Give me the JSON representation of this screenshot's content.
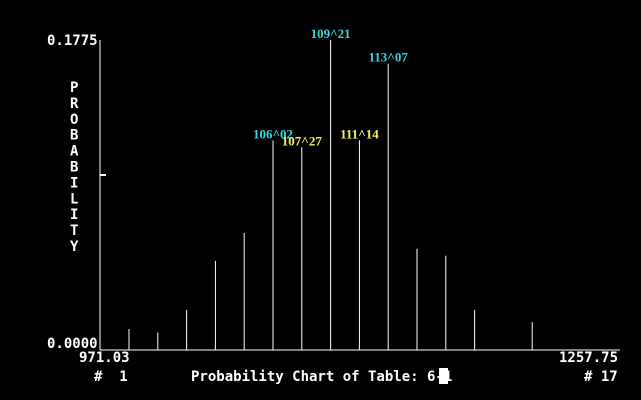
{
  "screen": {
    "ylabel": "PROBABILITY",
    "y_max_label": "0.1775",
    "y_min_label": "0.0000",
    "x_min_label": "971.03",
    "x_max_label": "1257.75",
    "x_min_index": "#  1",
    "x_max_index": "# 17",
    "footer": "Probability Chart of Table: 6-1"
  },
  "colors": {
    "background": "#000000",
    "axis": "#ffffff",
    "bars": "#ffffff",
    "label_cyan": "#33d6e6",
    "label_yellow": "#f2f25a"
  },
  "chart_data": {
    "type": "bar",
    "title": "Probability Chart of Table: 6-1",
    "xlabel": "",
    "ylabel": "PROBABILITY",
    "ylim": [
      0.0,
      0.1775
    ],
    "xlim": [
      971.03,
      1257.75
    ],
    "x_tick_labels": [
      "971.03",
      "1257.75"
    ],
    "y_tick_labels": [
      "0.1775",
      "0.0000"
    ],
    "grid": false,
    "bars": [
      {
        "slot": 1,
        "value": 0.012
      },
      {
        "slot": 2,
        "value": 0.01
      },
      {
        "slot": 3,
        "value": 0.023
      },
      {
        "slot": 4,
        "value": 0.051
      },
      {
        "slot": 5,
        "value": 0.067
      },
      {
        "slot": 6,
        "value": 0.12,
        "label": "106^02",
        "label_color": "cyan"
      },
      {
        "slot": 7,
        "value": 0.116,
        "label": "107^27",
        "label_color": "yellow"
      },
      {
        "slot": 8,
        "value": 0.1775,
        "label": "109^21",
        "label_color": "cyan"
      },
      {
        "slot": 9,
        "value": 0.12,
        "label": "111^14",
        "label_color": "yellow"
      },
      {
        "slot": 10,
        "value": 0.164,
        "label": "113^07",
        "label_color": "cyan"
      },
      {
        "slot": 11,
        "value": 0.058
      },
      {
        "slot": 12,
        "value": 0.054
      },
      {
        "slot": 13,
        "value": 0.023
      },
      {
        "slot": 15,
        "value": 0.016
      }
    ]
  }
}
